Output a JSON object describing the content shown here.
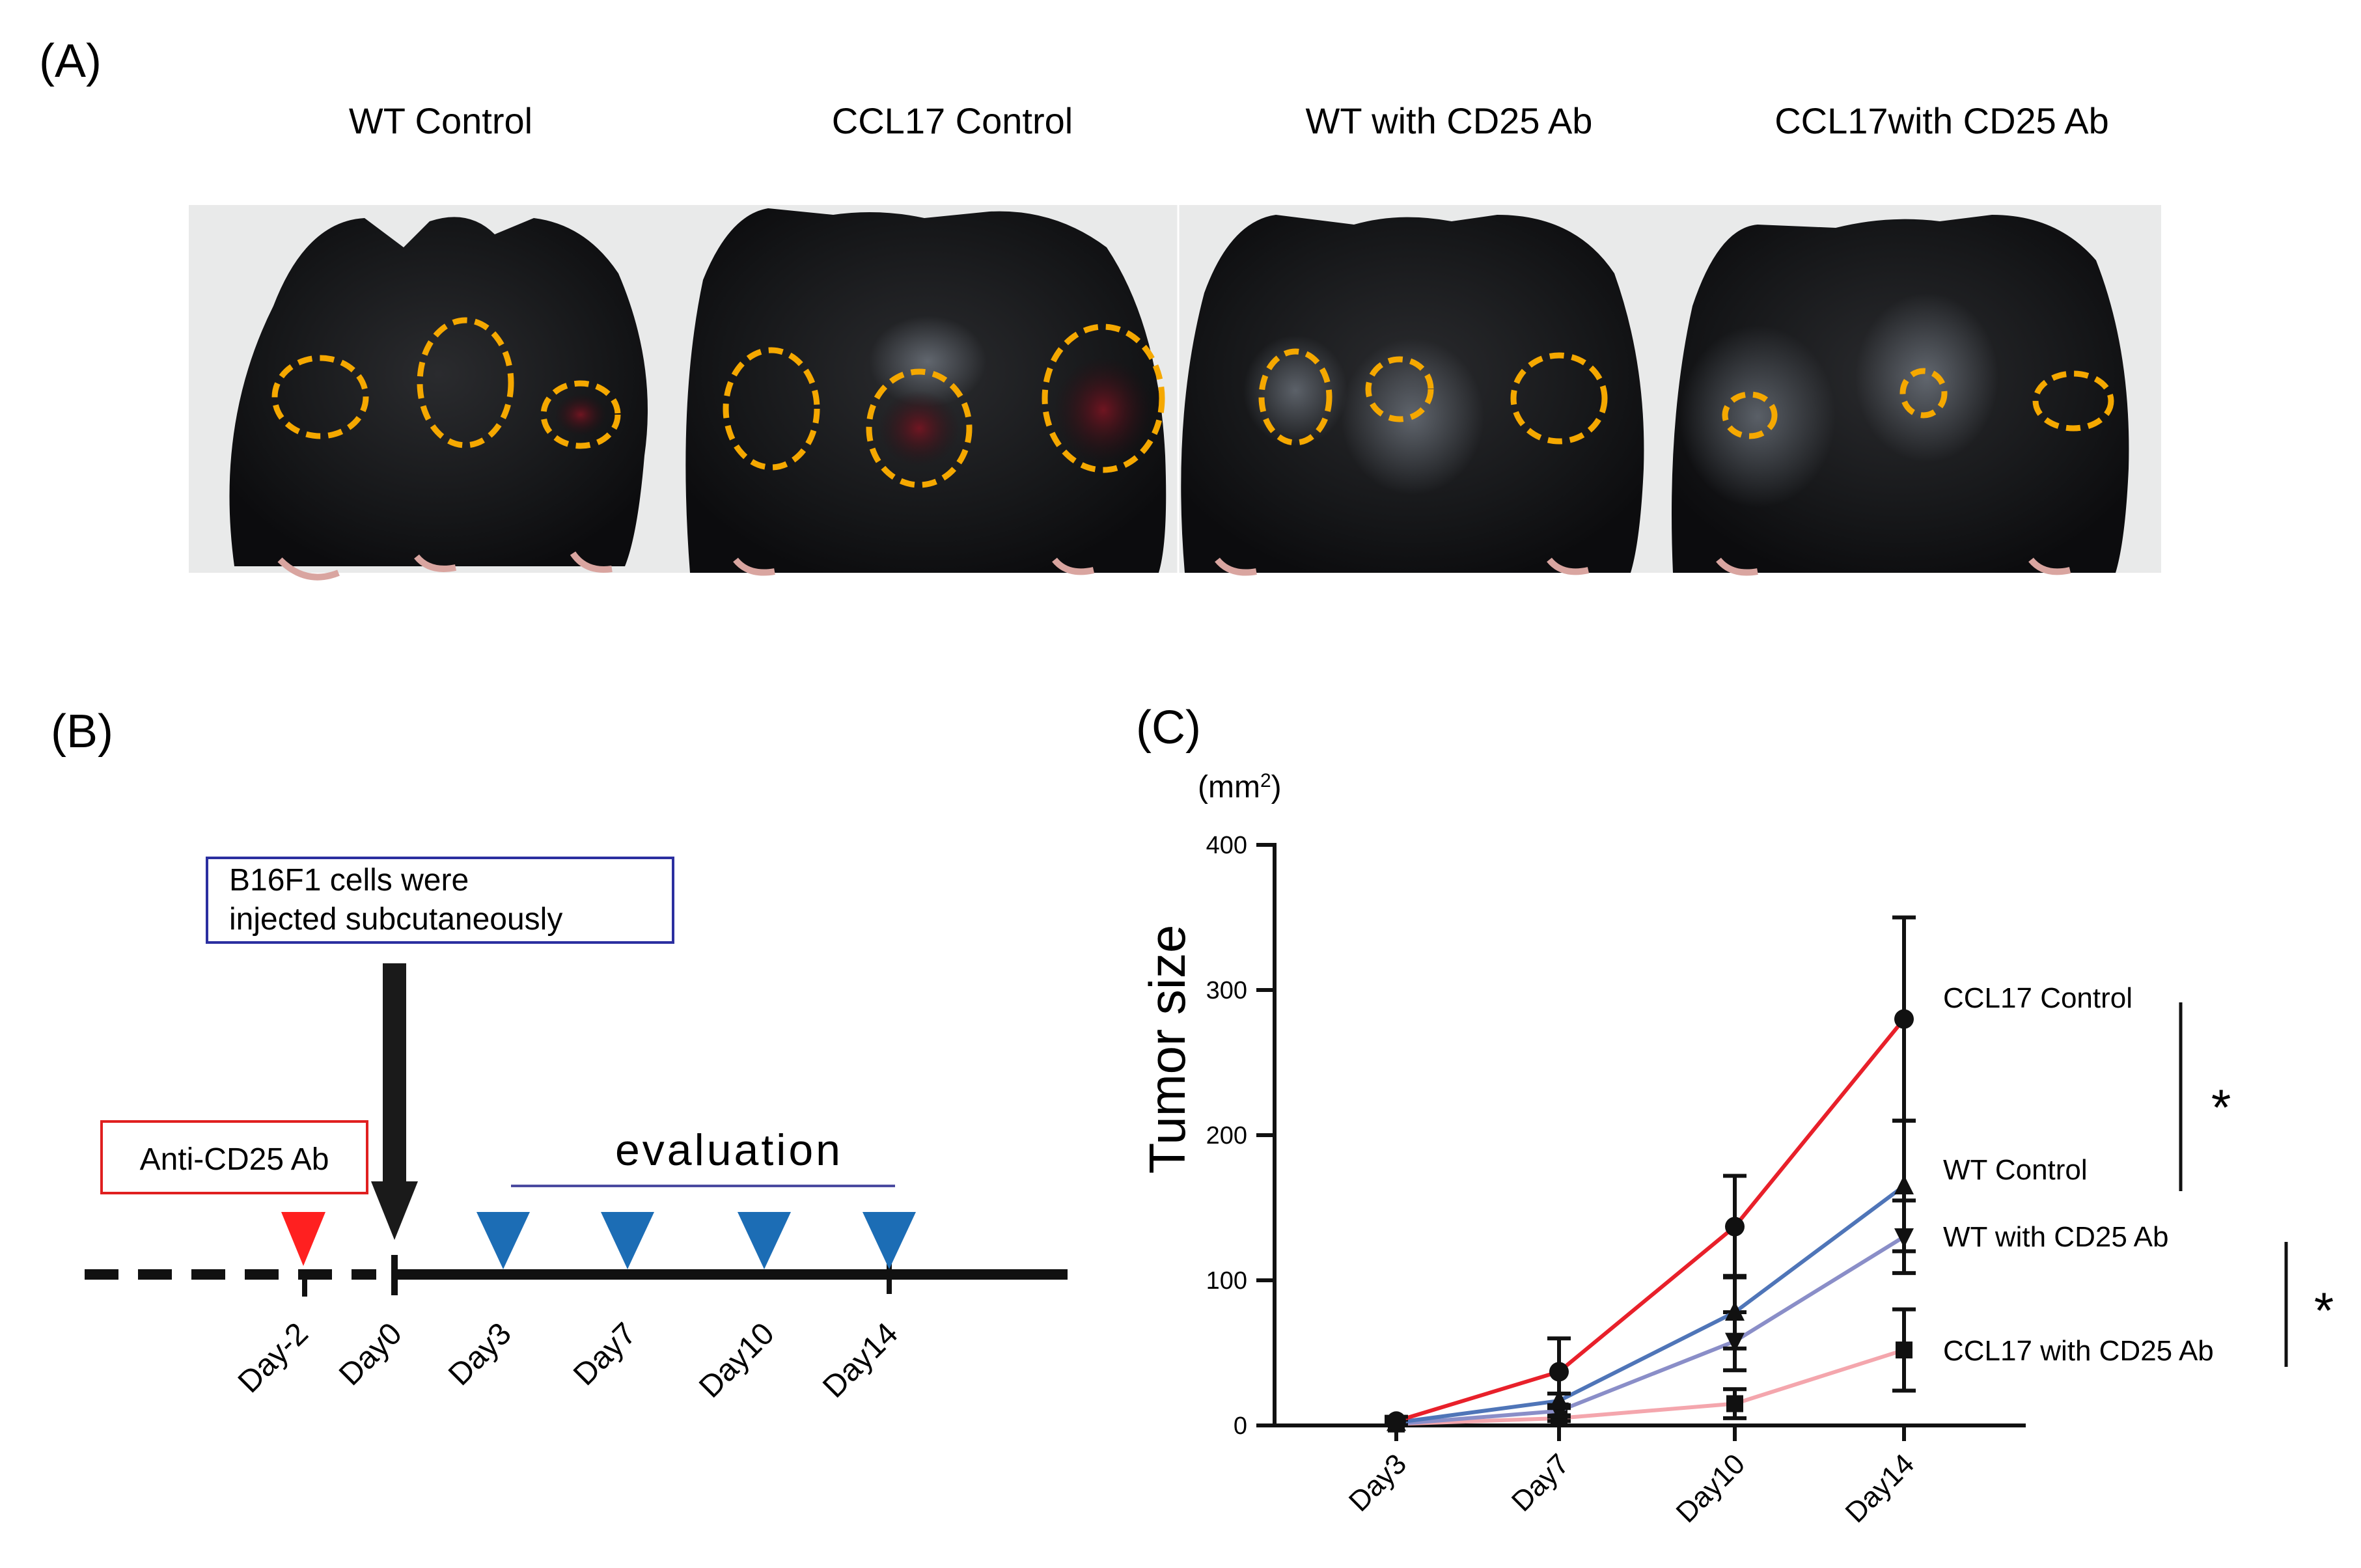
{
  "panel_a": {
    "label": "(A)",
    "groups": [
      {
        "title": "WT Control"
      },
      {
        "title": "CCL17 Control"
      },
      {
        "title": "WT with CD25 Ab"
      },
      {
        "title": "CCL17with CD25 Ab"
      }
    ],
    "colors": {
      "circle": "#f5a800",
      "background": "#e9eaea",
      "fur": "#17181a"
    }
  },
  "panel_b": {
    "label": "(B)",
    "injection_box": {
      "line1": "B16F1 cells were",
      "line2": "injected subcutaneously"
    },
    "antibody_box": "Anti-CD25 Ab",
    "evaluation_label": "evaluation",
    "days": [
      "Day-2",
      "Day0",
      "Day3",
      "Day7",
      "Day10",
      "Day14"
    ],
    "colors": {
      "antibody_marker": "#ff2020",
      "evaluation_marker": "#1c6db5",
      "evaluation_line": "#4b4ba0",
      "injection_box_border": "#2b2fa0",
      "antibody_box_border": "#e02020"
    }
  },
  "panel_c": {
    "label": "(C)",
    "unit_prefix": "(mm",
    "unit_sup": "2",
    "unit_suffix": ")",
    "significance": [
      "*",
      "*"
    ]
  },
  "chart_data": {
    "type": "line",
    "title": "",
    "xlabel": "",
    "ylabel": "Tumor size",
    "categories": [
      "Day3",
      "Day7",
      "Day10",
      "Day14"
    ],
    "ylim": [
      0,
      400
    ],
    "yticks": [
      "0",
      "100",
      "200",
      "300",
      "400"
    ],
    "series": [
      {
        "name": "CCL17 Control",
        "marker": "circle",
        "color": "#e8202a",
        "values": [
          3,
          37,
          137,
          280
        ],
        "errors": [
          3,
          23,
          35,
          70
        ]
      },
      {
        "name": "WT Control",
        "marker": "triangle-up",
        "color": "#4f75b8",
        "values": [
          2,
          17,
          78,
          165
        ],
        "errors": [
          2,
          5,
          25,
          45
        ]
      },
      {
        "name": "WT with CD25 Ab",
        "marker": "triangle-down",
        "color": "#8a8ec8",
        "values": [
          1,
          10,
          58,
          130
        ],
        "errors": [
          1,
          4,
          20,
          25
        ]
      },
      {
        "name": "CCL17 with CD25 Ab",
        "marker": "square",
        "color": "#f4a6ad",
        "values": [
          1,
          5,
          15,
          52
        ],
        "errors": [
          1,
          2,
          10,
          28
        ]
      }
    ]
  }
}
